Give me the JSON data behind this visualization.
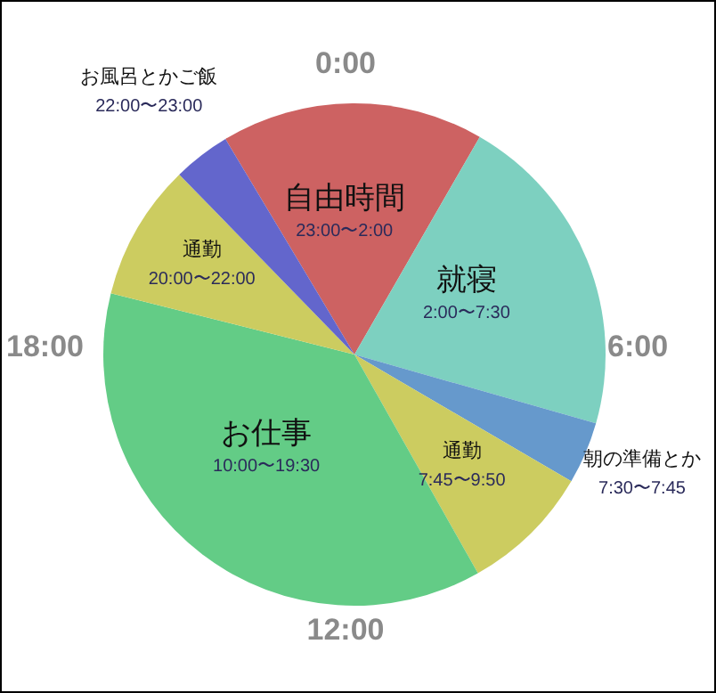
{
  "chart_data": {
    "type": "pie",
    "categories": [
      "自由時間\n23:00〜2:00",
      "就寝\n2:00〜7:30",
      "朝の準備とか\n7:30〜7:45",
      "通勤\n7:45〜9:50",
      "お仕事\n10:00〜19:30",
      "通勤\n20:00〜22:00",
      "お風呂とかご飯\n22:00〜23:00"
    ],
    "values": [
      16.9,
      21.1,
      4.0,
      8.4,
      37.1,
      8.8,
      3.7
    ],
    "colors": [
      "#cd6262",
      "#7dd0c0",
      "#6699cc",
      "#cccc60",
      "#63cc86",
      "#cccc60",
      "#6366cc"
    ],
    "annotations": [
      "0:00",
      "6:00",
      "12:00",
      "18:00"
    ]
  }
}
